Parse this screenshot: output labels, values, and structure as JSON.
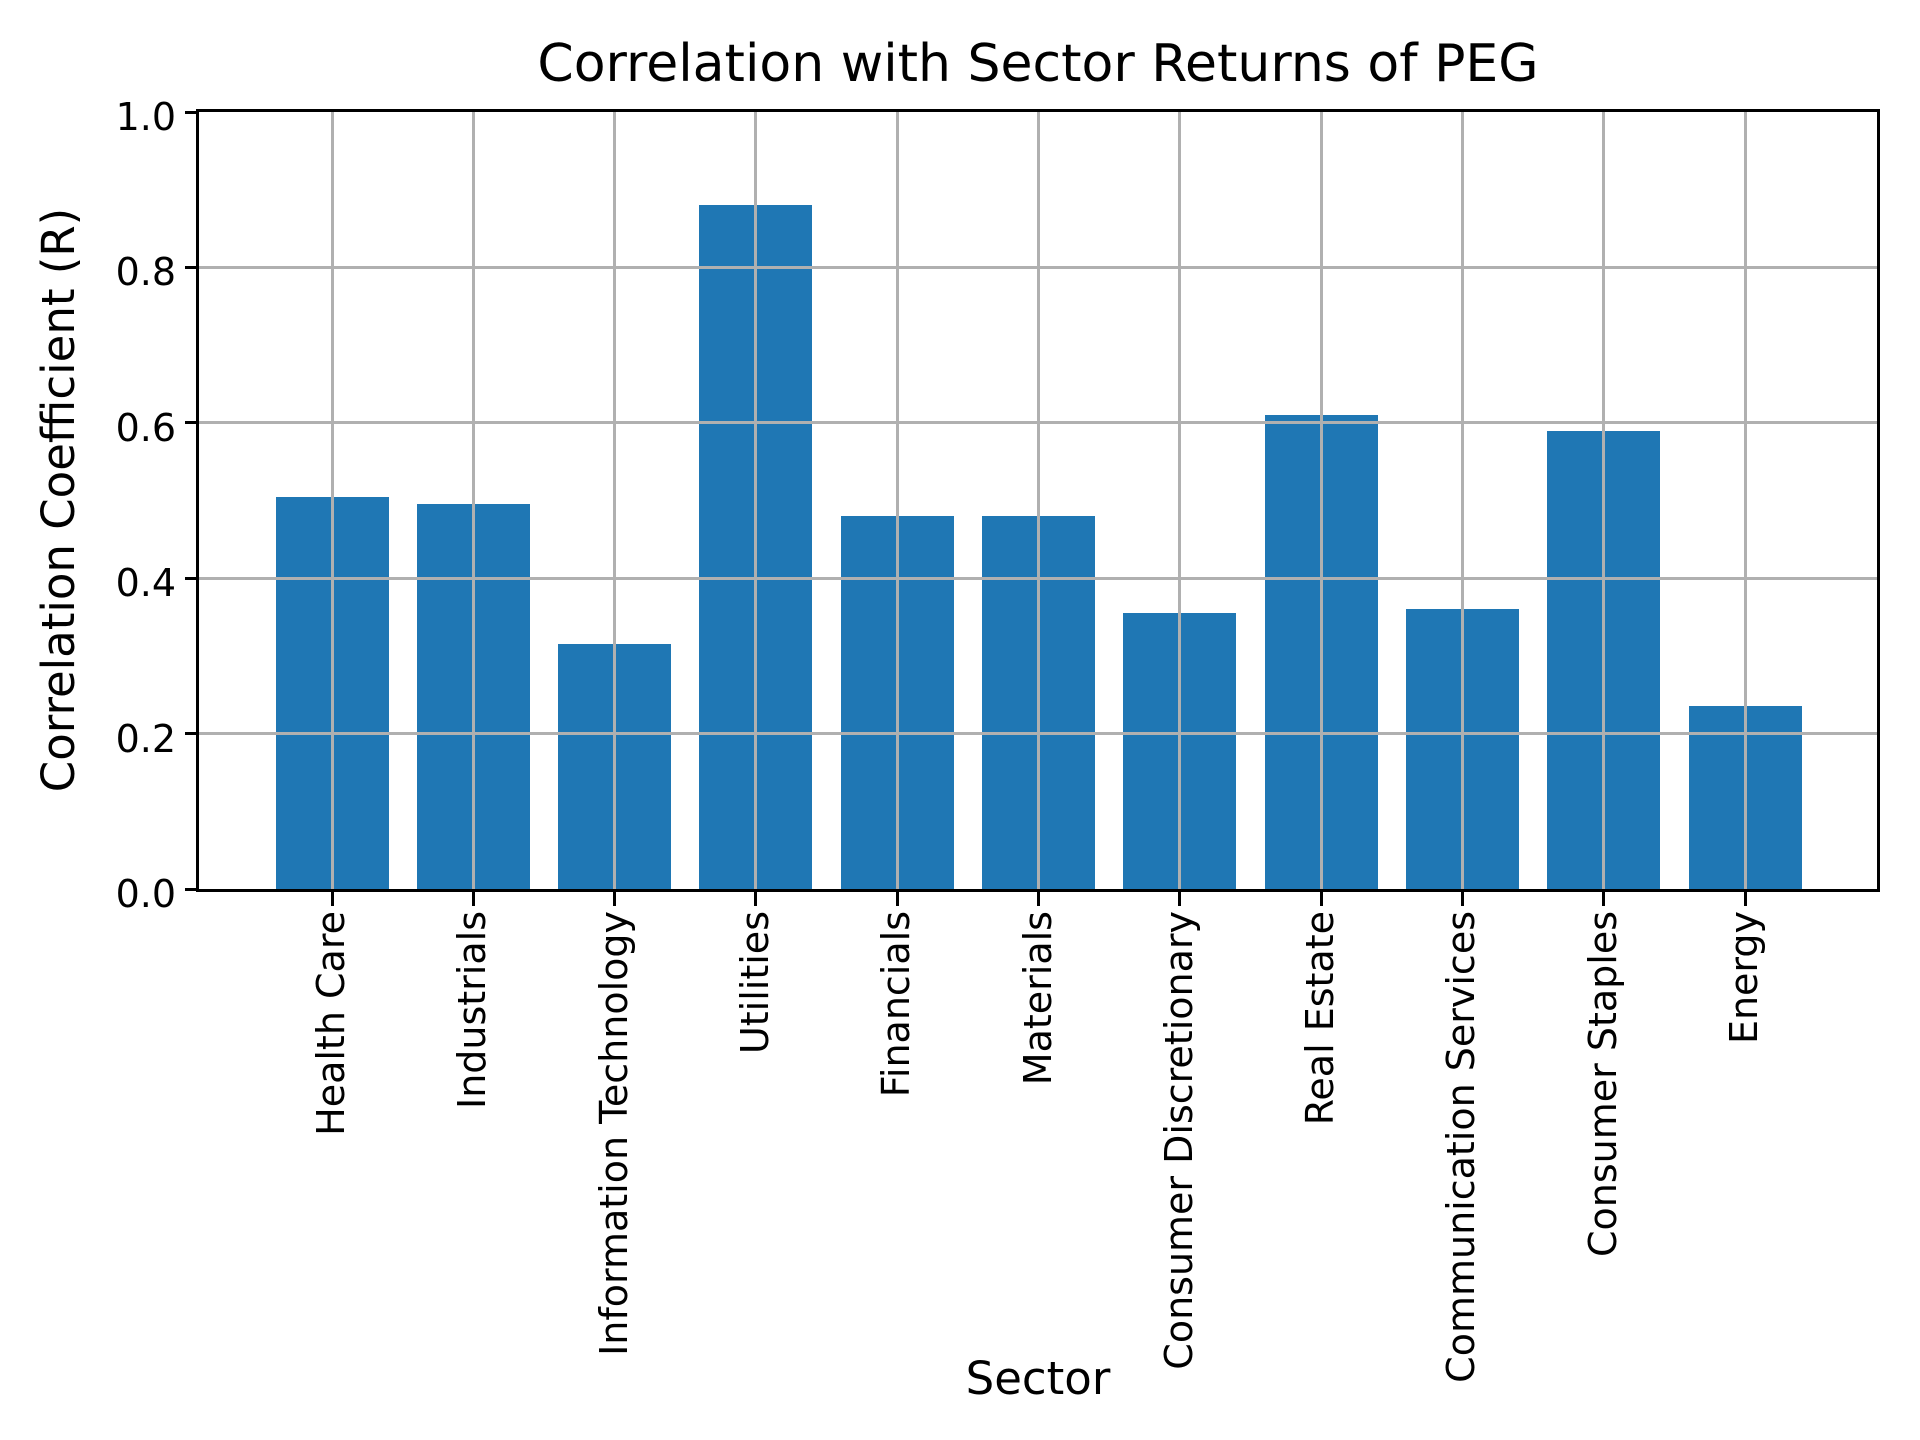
{
  "chart_data": {
    "type": "bar",
    "title": "Correlation with Sector Returns of PEG",
    "xlabel": "Sector",
    "ylabel": "Correlation Coefficient (R)",
    "categories": [
      "Health Care",
      "Industrials",
      "Information Technology",
      "Utilities",
      "Financials",
      "Materials",
      "Consumer Discretionary",
      "Real Estate",
      "Communication Services",
      "Consumer Staples",
      "Energy"
    ],
    "values": [
      0.505,
      0.495,
      0.315,
      0.88,
      0.48,
      0.48,
      0.355,
      0.61,
      0.36,
      0.59,
      0.235
    ],
    "ylim": [
      0.0,
      1.0
    ],
    "yticks": [
      0.0,
      0.2,
      0.4,
      0.6,
      0.8,
      1.0
    ],
    "grid": true,
    "legend": "none",
    "bar_color": "#1f77b4",
    "grid_color": "#b0b0b0",
    "spine_color": "#000000"
  }
}
